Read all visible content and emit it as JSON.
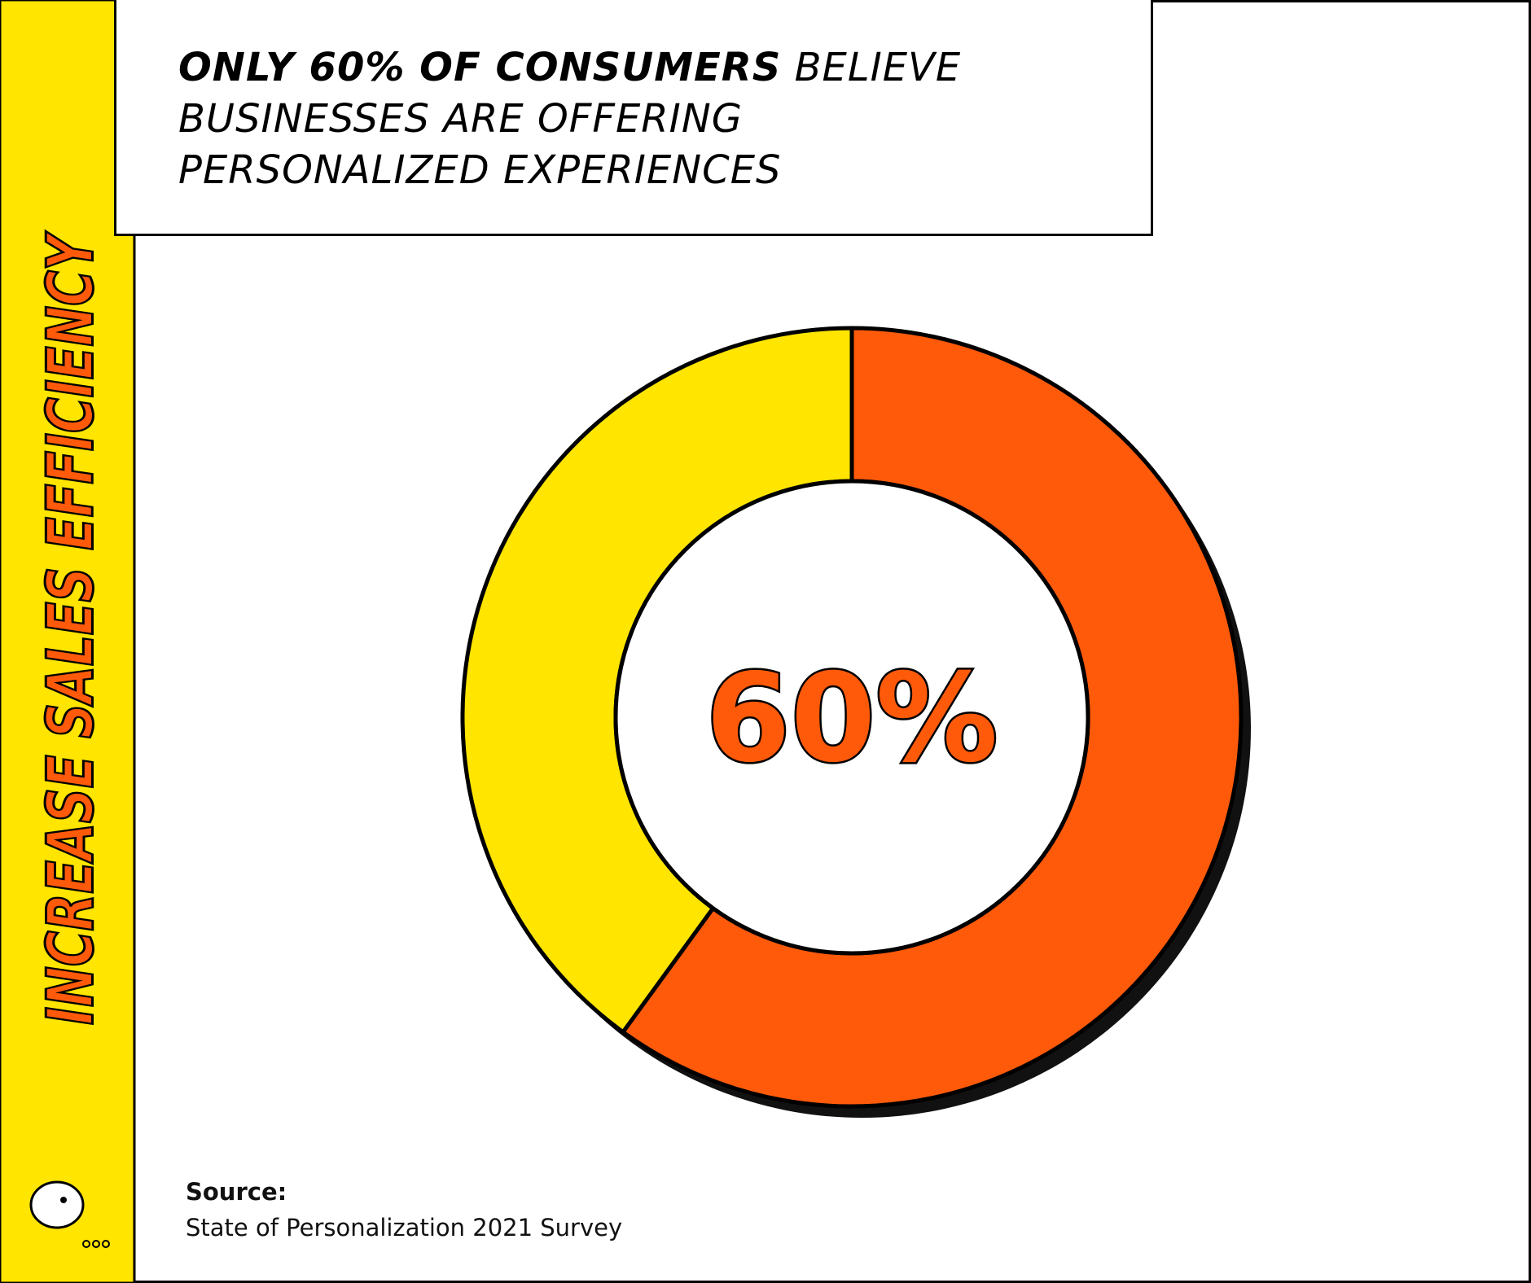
{
  "side_label": "INCREASE SALES EFFICIENCY",
  "chart_data": {
    "type": "pie",
    "donut": true,
    "title_emphasis": "ONLY 60% OF CONSUMERS",
    "title": "BELIEVE BUSINESSES ARE OFFERING PERSONALIZED EXPERIENCES",
    "values": [
      60,
      40
    ],
    "value_labels": [
      "60%",
      null
    ],
    "colors": [
      "#ff5a0a",
      "#ffe500"
    ]
  },
  "source": {
    "label": "Source:",
    "text": "State of Personalization 2021 Survey"
  }
}
